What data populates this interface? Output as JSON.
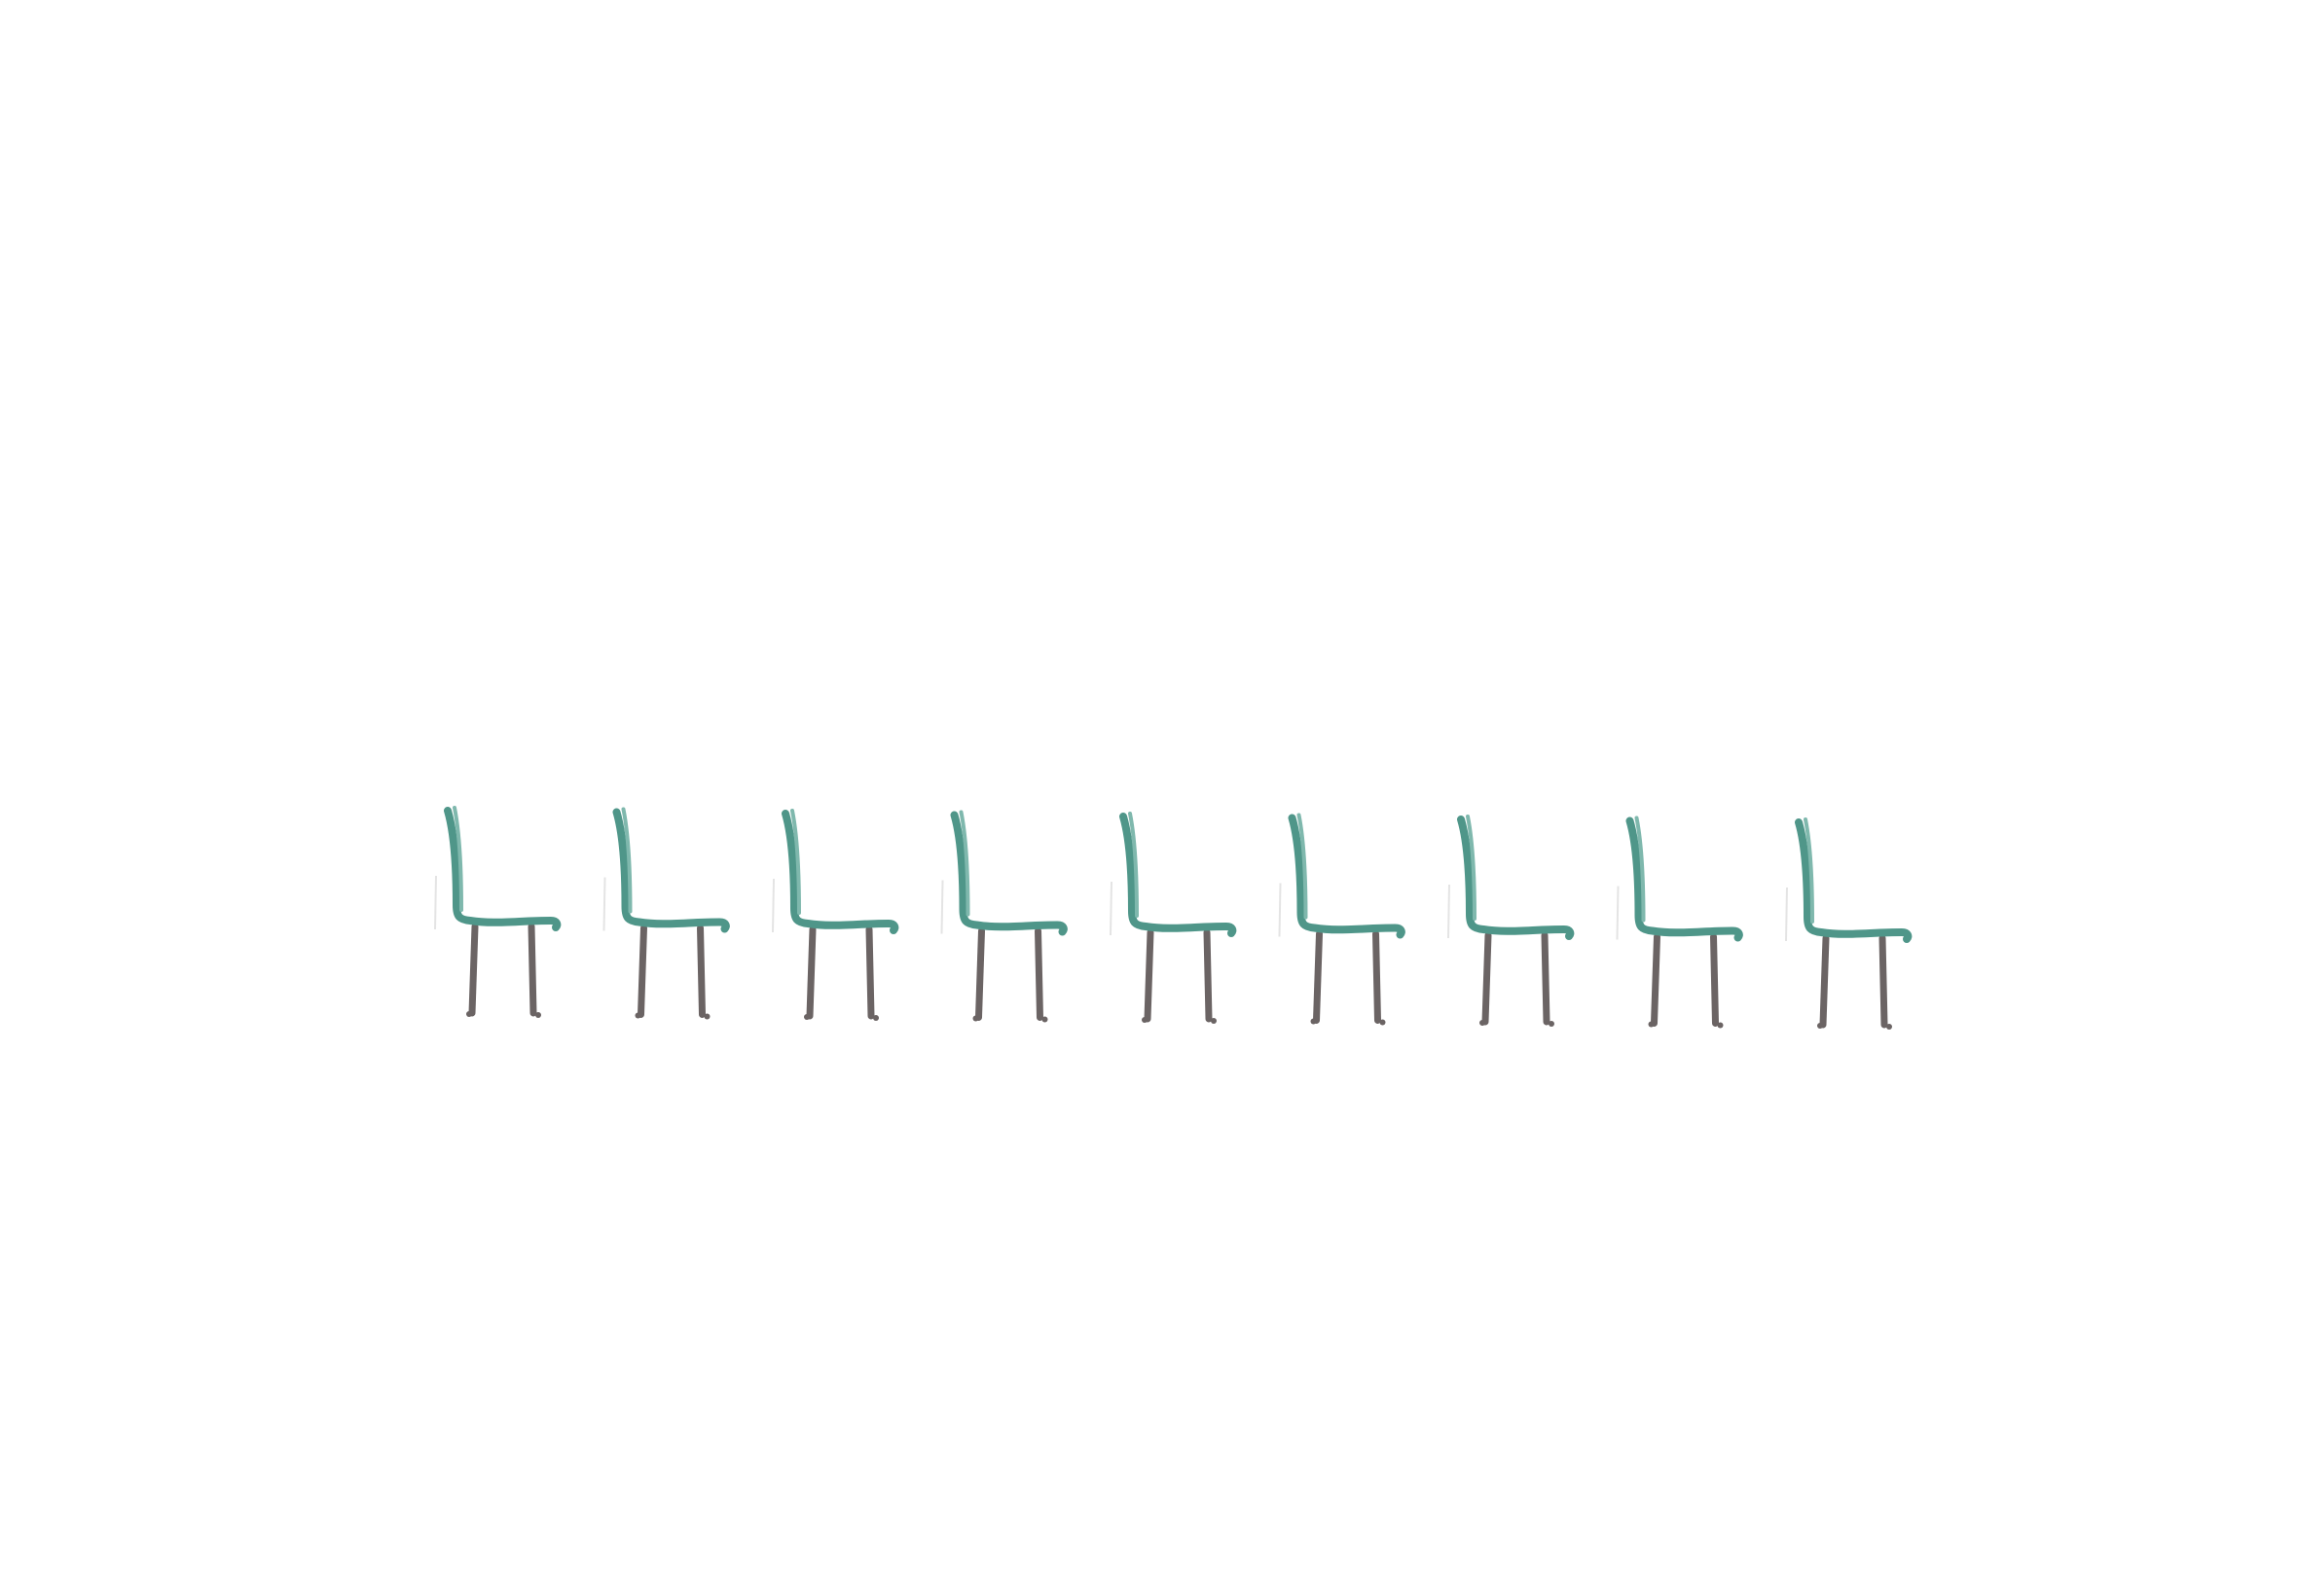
{
  "scene": {
    "background_color": "#ffffff",
    "object_icon": "chair-icon",
    "object_count": 9,
    "colors": {
      "seat_and_back": "#4f9689",
      "seat_highlight": "#7fb8ad",
      "legs": "#6b6464"
    }
  }
}
